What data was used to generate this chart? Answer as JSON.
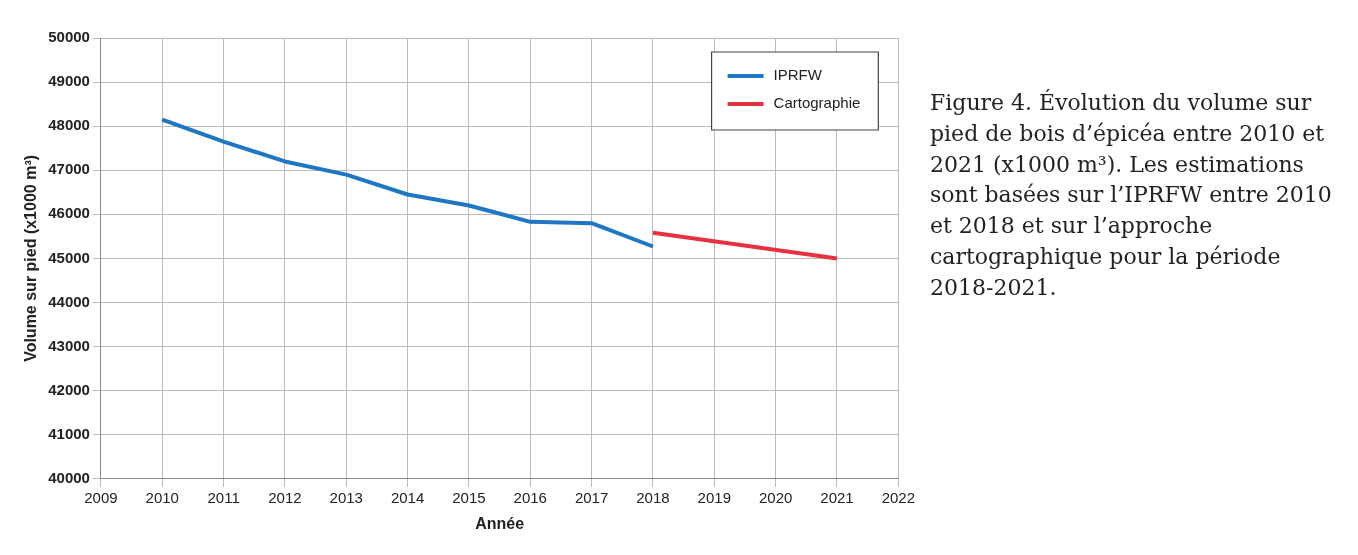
{
  "chart_data": {
    "type": "line",
    "xlabel": "Année",
    "ylabel": "Volume sur pied (x1000 m³)",
    "xlim": [
      2009,
      2022
    ],
    "xticks": [
      2009,
      2010,
      2011,
      2012,
      2013,
      2014,
      2015,
      2016,
      2017,
      2018,
      2019,
      2020,
      2021,
      2022
    ],
    "ylim": [
      40000,
      50000
    ],
    "yticks": [
      40000,
      41000,
      42000,
      43000,
      44000,
      45000,
      46000,
      47000,
      48000,
      49000,
      50000
    ],
    "grid": true,
    "legend": "top right",
    "marker": "none",
    "line_style": "solid",
    "series": [
      {
        "name": "IPRFW",
        "color": "#1f77c4",
        "x": [
          2010,
          2011,
          2012,
          2013,
          2014,
          2015,
          2016,
          2017,
          2018
        ],
        "values": [
          48150,
          47650,
          47200,
          46900,
          46450,
          46200,
          45830,
          45800,
          45270
        ]
      },
      {
        "name": "Cartographie",
        "color": "#e8313f",
        "x": [
          2018,
          2021
        ],
        "values": [
          45580,
          45000
        ]
      }
    ],
    "annotations": [
      "Figure 4. Évolution du volume sur pied de bois d’épicéa entre 2010 et 2021 (x1000 m³). Les estimations sont basées sur l’IPRFW entre 2010 et 2018 et sur l’approche cartographique pour la période 2018-2021."
    ]
  }
}
